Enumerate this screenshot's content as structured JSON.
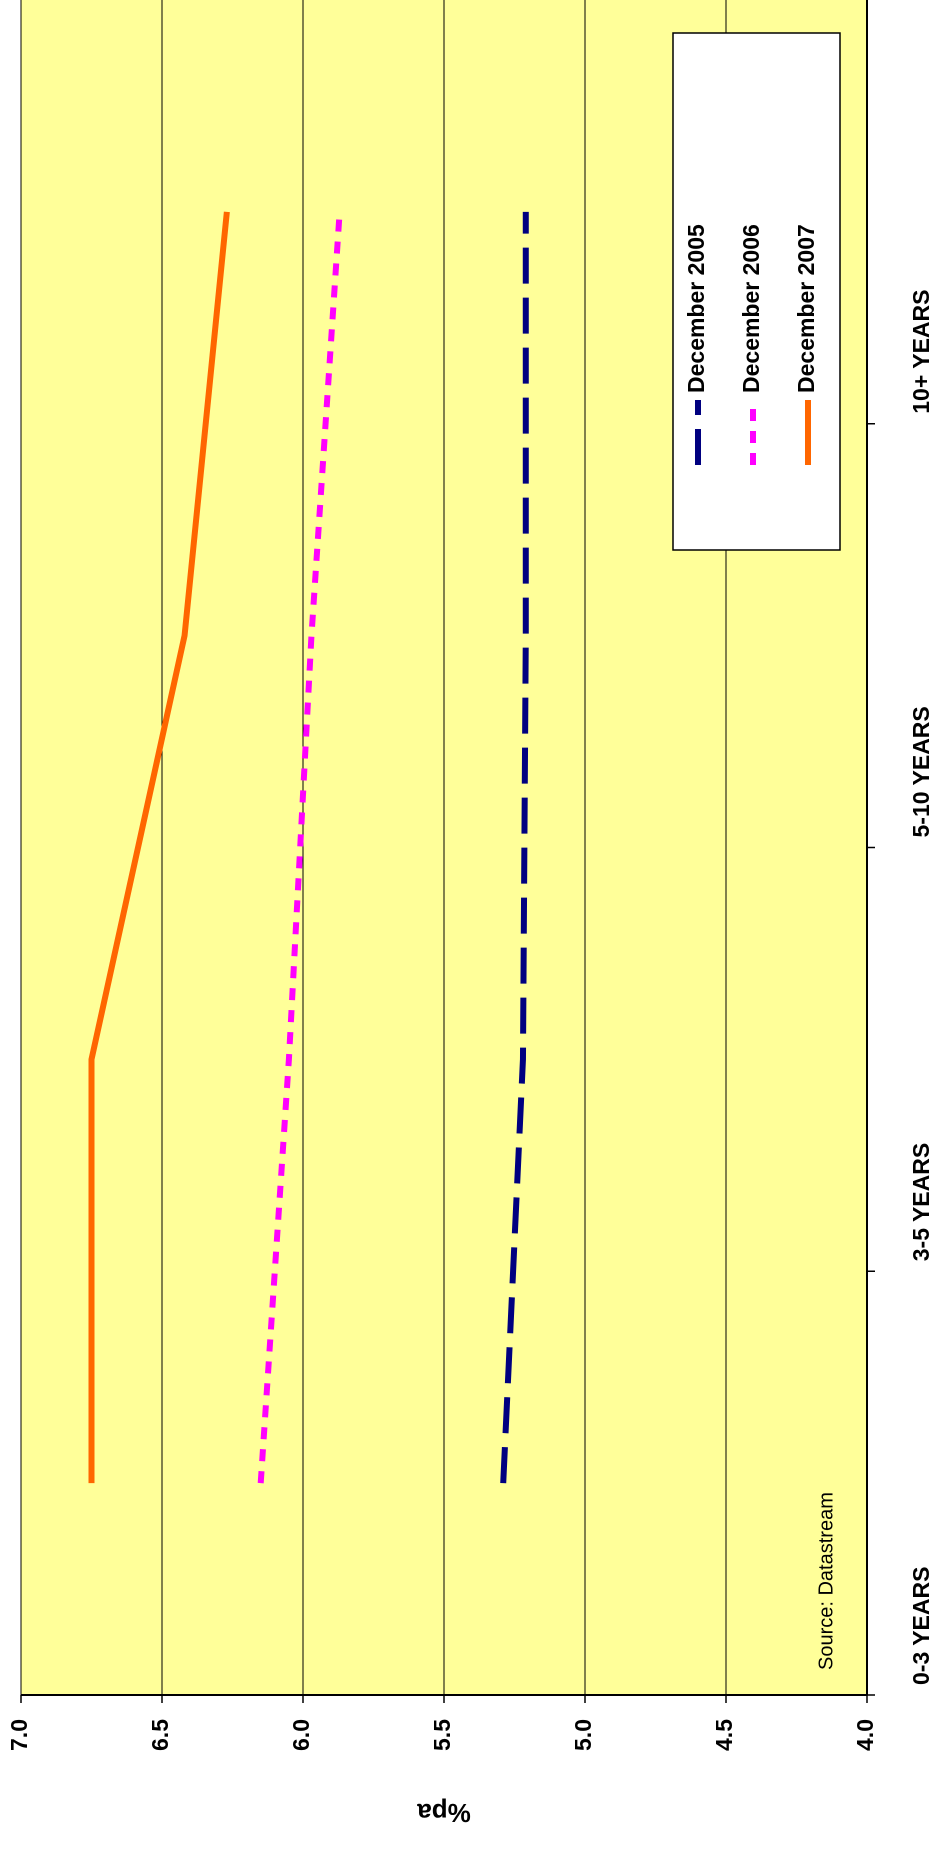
{
  "chart_data": {
    "type": "line",
    "y_label": "%pa",
    "annotation": "Source: Datastream",
    "categories": [
      "0-3 YEARS",
      "3-5 YEARS",
      "5-10 YEARS",
      "10+ YEARS"
    ],
    "series": [
      {
        "name": "December 2005",
        "color": "#000080",
        "dash": "dashed",
        "values": [
          5.29,
          5.22,
          5.21,
          5.21
        ]
      },
      {
        "name": "December 2006",
        "color": "#ff00ff",
        "dash": "dotted",
        "values": [
          6.15,
          6.05,
          5.97,
          5.87
        ]
      },
      {
        "name": "December 2007",
        "color": "#ff6600",
        "dash": "solid",
        "values": [
          6.75,
          6.75,
          6.42,
          6.27
        ]
      }
    ],
    "ylim": [
      4.0,
      7.0
    ],
    "yticks": [
      {
        "value": 4.0,
        "label": "4.0"
      },
      {
        "value": 4.5,
        "label": "4.5"
      },
      {
        "value": 5.0,
        "label": "5.0"
      },
      {
        "value": 5.5,
        "label": "5.5"
      },
      {
        "value": 6.0,
        "label": "6.0"
      },
      {
        "value": 6.5,
        "label": "6.5"
      },
      {
        "value": 7.0,
        "label": "7.0"
      }
    ],
    "grid": true
  }
}
